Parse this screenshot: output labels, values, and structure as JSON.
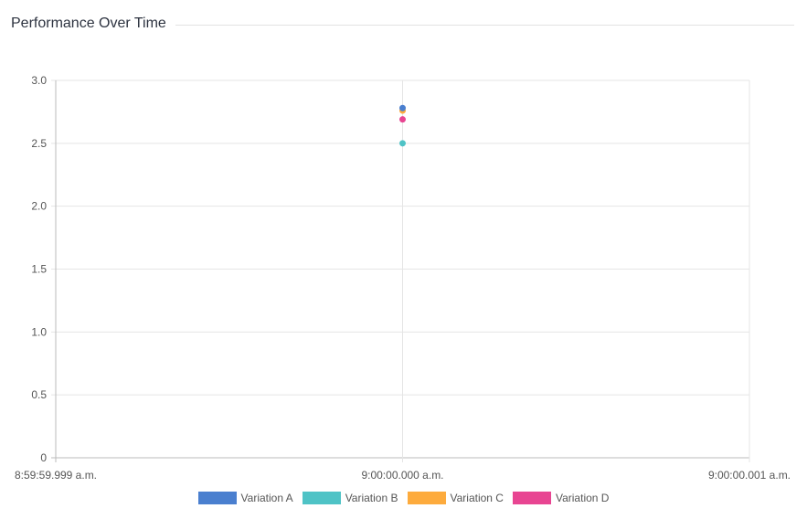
{
  "title": "Performance Over Time",
  "chart_data": {
    "type": "scatter",
    "title": "Performance Over Time",
    "xlabel": "",
    "ylabel": "",
    "x_ticks": [
      "8:59:59.999 a.m.",
      "9:00:00.000 a.m.",
      "9:00:00.001 a.m."
    ],
    "y_ticks": [
      "0",
      "0.5",
      "1.0",
      "1.5",
      "2.0",
      "2.5",
      "3.0"
    ],
    "ylim": [
      0,
      3
    ],
    "grid": true,
    "legend_position": "bottom",
    "series": [
      {
        "name": "Variation A",
        "color": "#4a7fcf",
        "x": "9:00:00.000 a.m.",
        "y": 2.78
      },
      {
        "name": "Variation B",
        "color": "#4fc3c6",
        "x": "9:00:00.000 a.m.",
        "y": 2.5
      },
      {
        "name": "Variation C",
        "color": "#fdab3d",
        "x": "9:00:00.000 a.m.",
        "y": 2.76
      },
      {
        "name": "Variation D",
        "color": "#e84592",
        "x": "9:00:00.000 a.m.",
        "y": 2.69
      }
    ]
  }
}
